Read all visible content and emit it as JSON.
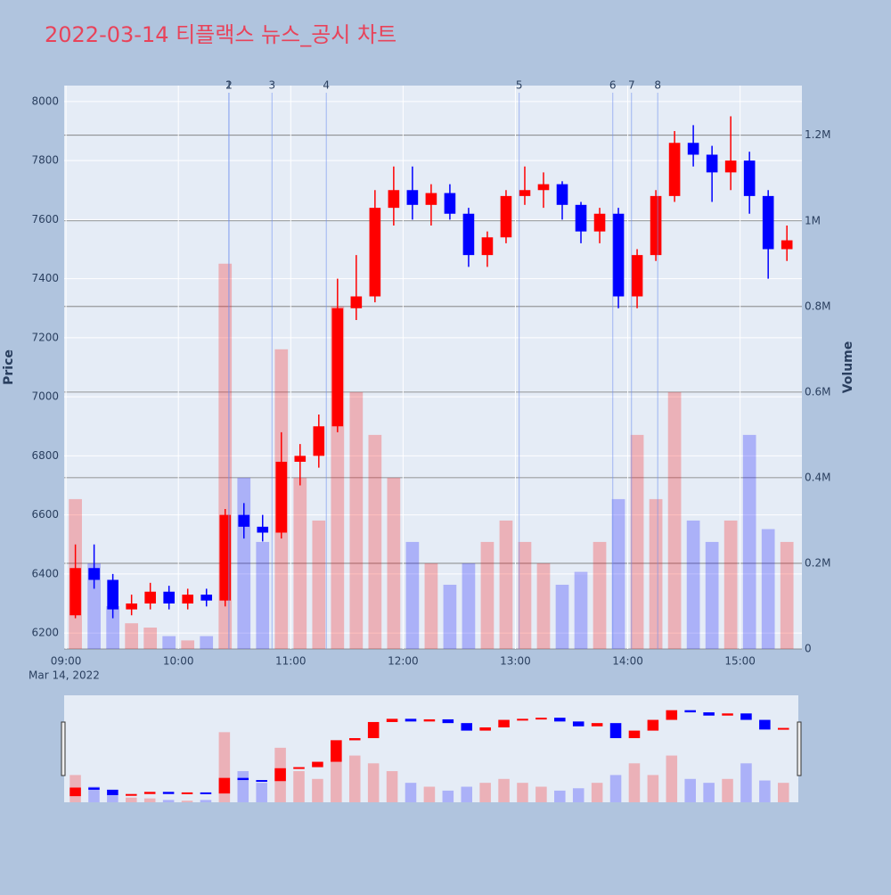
{
  "chart_data": {
    "type": "candlestick",
    "title": "2022-03-14 티플랙스 뉴스_공시 차트",
    "y_label": "Price",
    "y2_label": "Volume",
    "x_date_label": "Mar 14, 2022",
    "x": [
      "09:00",
      "09:10",
      "09:20",
      "09:30",
      "09:40",
      "09:50",
      "10:00",
      "10:10",
      "10:20",
      "10:30",
      "10:40",
      "10:50",
      "11:00",
      "11:10",
      "11:20",
      "11:30",
      "11:40",
      "11:50",
      "12:00",
      "12:10",
      "12:20",
      "12:30",
      "12:40",
      "12:50",
      "13:00",
      "13:10",
      "13:20",
      "13:30",
      "13:40",
      "13:50",
      "14:00",
      "14:10",
      "14:20",
      "14:30",
      "14:40",
      "14:50",
      "15:00",
      "15:10",
      "15:20"
    ],
    "open": [
      6260,
      6420,
      6380,
      6280,
      6300,
      6340,
      6300,
      6330,
      6310,
      6600,
      6560,
      6540,
      6780,
      6800,
      6900,
      7300,
      7340,
      7640,
      7700,
      7650,
      7690,
      7620,
      7480,
      7540,
      7680,
      7700,
      7720,
      7650,
      7560,
      7620,
      7340,
      7480,
      7680,
      7860,
      7820,
      7760,
      7800,
      7680,
      7500
    ],
    "high": [
      6500,
      6500,
      6400,
      6330,
      6370,
      6360,
      6350,
      6350,
      6620,
      6640,
      6600,
      6880,
      6840,
      6940,
      7400,
      7480,
      7700,
      7780,
      7780,
      7720,
      7720,
      7640,
      7560,
      7700,
      7780,
      7760,
      7730,
      7660,
      7640,
      7640,
      7500,
      7700,
      7900,
      7920,
      7850,
      7950,
      7830,
      7700,
      7580
    ],
    "low": [
      6250,
      6350,
      6250,
      6260,
      6280,
      6280,
      6280,
      6290,
      6290,
      6520,
      6510,
      6520,
      6700,
      6760,
      6880,
      7260,
      7320,
      7580,
      7600,
      7580,
      7600,
      7440,
      7440,
      7520,
      7650,
      7640,
      7600,
      7520,
      7520,
      7300,
      7300,
      7460,
      7660,
      7780,
      7660,
      7700,
      7620,
      7400,
      7460
    ],
    "close": [
      6420,
      6380,
      6280,
      6300,
      6340,
      6300,
      6330,
      6310,
      6600,
      6560,
      6540,
      6780,
      6800,
      6900,
      7300,
      7340,
      7640,
      7700,
      7650,
      7690,
      7620,
      7480,
      7540,
      7680,
      7700,
      7720,
      7650,
      7560,
      7620,
      7340,
      7480,
      7680,
      7860,
      7820,
      7760,
      7800,
      7680,
      7500,
      7530
    ],
    "volume": [
      350000,
      200000,
      100000,
      60000,
      50000,
      30000,
      20000,
      30000,
      900000,
      400000,
      250000,
      700000,
      400000,
      300000,
      800000,
      600000,
      500000,
      400000,
      250000,
      200000,
      150000,
      200000,
      250000,
      300000,
      250000,
      200000,
      150000,
      180000,
      250000,
      350000,
      500000,
      350000,
      600000,
      300000,
      250000,
      300000,
      500000,
      280000,
      250000
    ],
    "increasing_color": "#ff0000",
    "decreasing_color": "#0000ff",
    "xlim": [
      "08:59",
      "15:33"
    ],
    "xticks": [
      "09:00",
      "10:00",
      "11:00",
      "12:00",
      "13:00",
      "14:00",
      "15:00"
    ],
    "ylim": [
      6146,
      8054
    ],
    "yticks": [
      6200,
      6400,
      6600,
      6800,
      7000,
      7200,
      7400,
      7600,
      7800,
      8000
    ],
    "y2lim": [
      0,
      1316000
    ],
    "y2ticks": [
      0,
      {
        "value": 200000,
        "label": "0.2M"
      },
      {
        "value": 400000,
        "label": "0.4M"
      },
      {
        "value": 600000,
        "label": "0.6M"
      },
      {
        "value": 800000,
        "label": "0.8M"
      },
      {
        "value": 1000000,
        "label": "1M"
      },
      {
        "value": 1200000,
        "label": "1.2M"
      }
    ],
    "annotations": [
      {
        "x": "10:27",
        "label": "1"
      },
      {
        "x": "10:27",
        "label": "2"
      },
      {
        "x": "10:50",
        "label": "3"
      },
      {
        "x": "11:19",
        "label": "4"
      },
      {
        "x": "13:02",
        "label": "5"
      },
      {
        "x": "13:52",
        "label": "6"
      },
      {
        "x": "14:02",
        "label": "7"
      },
      {
        "x": "14:16",
        "label": "8"
      }
    ],
    "grid": true,
    "range_slider": true
  }
}
